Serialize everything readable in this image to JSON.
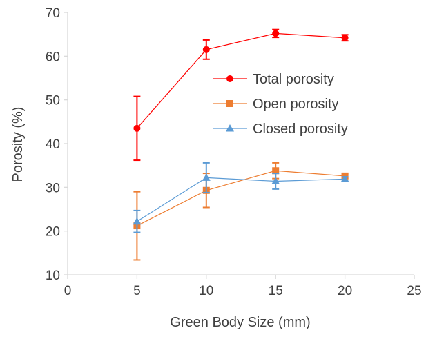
{
  "chart_data": {
    "type": "line",
    "title": "",
    "xlabel": "Green Body Size (mm)",
    "ylabel": "Porosity (%)",
    "xlim": [
      0,
      25
    ],
    "ylim": [
      10,
      70
    ],
    "xticks": [
      0,
      5,
      10,
      15,
      20,
      25
    ],
    "yticks": [
      10,
      20,
      30,
      40,
      50,
      60,
      70
    ],
    "grid": false,
    "legend_position": "center-right",
    "series": [
      {
        "name": "Total porosity",
        "color": "#ff0000",
        "marker": "circle",
        "x": [
          5,
          10,
          15,
          20
        ],
        "y": [
          43.5,
          61.5,
          65.2,
          64.2
        ],
        "error": [
          7.3,
          2.2,
          0.9,
          0.7
        ]
      },
      {
        "name": "Open porosity",
        "color": "#ed7d31",
        "marker": "square",
        "x": [
          5,
          10,
          15,
          20
        ],
        "y": [
          21.2,
          29.3,
          33.8,
          32.6
        ],
        "error": [
          7.8,
          3.9,
          1.8,
          0.5
        ]
      },
      {
        "name": "Closed porosity",
        "color": "#5b9bd5",
        "marker": "triangle",
        "x": [
          5,
          10,
          15,
          20
        ],
        "y": [
          22.2,
          32.2,
          31.4,
          31.9
        ],
        "error": [
          2.5,
          3.4,
          1.8,
          0.5
        ]
      }
    ]
  }
}
